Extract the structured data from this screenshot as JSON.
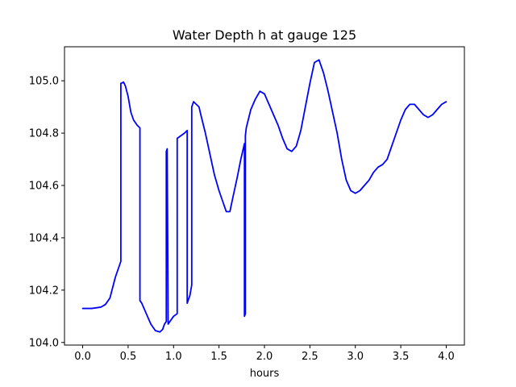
{
  "chart_data": {
    "type": "line",
    "title": "Water Depth h at gauge 125",
    "xlabel": "hours",
    "ylabel": "",
    "xlim": [
      -0.2,
      4.2
    ],
    "ylim": [
      103.99,
      105.13
    ],
    "xticks": [
      0.0,
      0.5,
      1.0,
      1.5,
      2.0,
      2.5,
      3.0,
      3.5,
      4.0
    ],
    "xtick_labels": [
      "0.0",
      "0.5",
      "1.0",
      "1.5",
      "2.0",
      "2.5",
      "3.0",
      "3.5",
      "4.0"
    ],
    "yticks": [
      104.0,
      104.2,
      104.4,
      104.6,
      104.8,
      105.0
    ],
    "ytick_labels": [
      "104.0",
      "104.2",
      "104.4",
      "104.6",
      "104.8",
      "105.0"
    ],
    "grid": false,
    "series": [
      {
        "color": "#0000ff",
        "x": [
          0.0,
          0.1,
          0.2,
          0.25,
          0.3,
          0.33,
          0.36,
          0.39,
          0.42,
          0.42,
          0.45,
          0.47,
          0.5,
          0.53,
          0.56,
          0.6,
          0.63,
          0.63,
          0.65,
          0.7,
          0.75,
          0.8,
          0.85,
          0.88,
          0.9,
          0.92,
          0.92,
          0.93,
          0.94,
          0.94,
          0.96,
          1.0,
          1.04,
          1.04,
          1.08,
          1.12,
          1.15,
          1.15,
          1.18,
          1.2,
          1.2,
          1.22,
          1.25,
          1.28,
          1.3,
          1.35,
          1.4,
          1.45,
          1.5,
          1.55,
          1.58,
          1.62,
          1.65,
          1.7,
          1.74,
          1.78,
          1.78,
          1.79,
          1.79,
          1.8,
          1.85,
          1.9,
          1.95,
          2.0,
          2.05,
          2.1,
          2.15,
          2.2,
          2.25,
          2.3,
          2.35,
          2.4,
          2.45,
          2.5,
          2.55,
          2.6,
          2.65,
          2.7,
          2.75,
          2.8,
          2.85,
          2.9,
          2.95,
          3.0,
          3.05,
          3.1,
          3.15,
          3.2,
          3.25,
          3.3,
          3.35,
          3.4,
          3.45,
          3.5,
          3.55,
          3.6,
          3.65,
          3.7,
          3.75,
          3.8,
          3.85,
          3.9,
          3.95,
          4.0
        ],
        "values": [
          104.13,
          104.13,
          104.135,
          104.145,
          104.17,
          104.21,
          104.25,
          104.28,
          104.31,
          104.99,
          104.995,
          104.98,
          104.94,
          104.88,
          104.85,
          104.83,
          104.82,
          104.16,
          104.15,
          104.11,
          104.07,
          104.045,
          104.04,
          104.05,
          104.07,
          104.08,
          104.73,
          104.74,
          104.07,
          104.07,
          104.08,
          104.1,
          104.11,
          104.78,
          104.79,
          104.8,
          104.81,
          104.15,
          104.18,
          104.22,
          104.9,
          104.92,
          104.91,
          104.9,
          104.87,
          104.8,
          104.72,
          104.64,
          104.58,
          104.53,
          104.5,
          104.5,
          104.55,
          104.63,
          104.7,
          104.76,
          104.1,
          104.11,
          104.79,
          104.82,
          104.89,
          104.93,
          104.96,
          104.95,
          104.91,
          104.87,
          104.83,
          104.78,
          104.74,
          104.73,
          104.75,
          104.81,
          104.9,
          104.99,
          105.07,
          105.08,
          105.03,
          104.96,
          104.88,
          104.8,
          104.7,
          104.62,
          104.58,
          104.57,
          104.58,
          104.6,
          104.62,
          104.65,
          104.67,
          104.68,
          104.7,
          104.75,
          104.8,
          104.85,
          104.89,
          104.91,
          104.91,
          104.89,
          104.87,
          104.86,
          104.87,
          104.89,
          104.91,
          104.92
        ]
      }
    ]
  }
}
